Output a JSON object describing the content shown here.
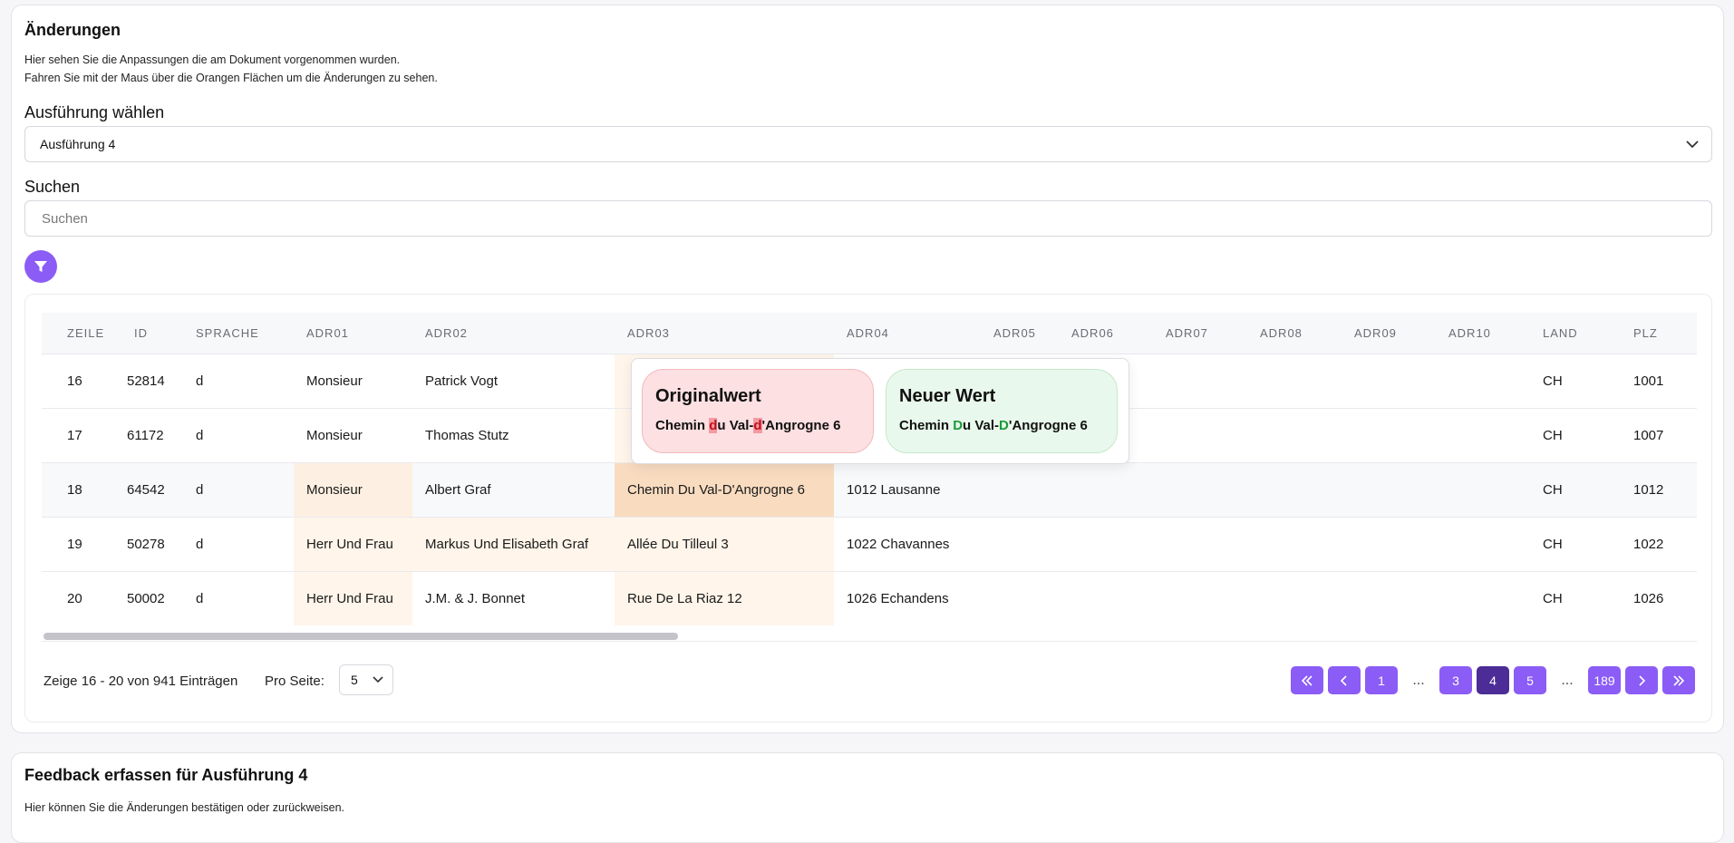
{
  "changes": {
    "title": "Änderungen",
    "desc_line1": "Hier sehen Sie die Anpassungen die am Dokument vorgenommen wurden.",
    "desc_line2": "Fahren Sie mit der Maus über die Orangen Flächen um die Änderungen zu sehen.",
    "execution_label": "Ausführung wählen",
    "execution_selected": "Ausführung 4",
    "search_label": "Suchen",
    "search_placeholder": "Suchen"
  },
  "table": {
    "columns": [
      "ZEILE",
      "ID",
      "SPRACHE",
      "ADR01",
      "ADR02",
      "ADR03",
      "ADR04",
      "ADR05",
      "ADR06",
      "ADR07",
      "ADR08",
      "ADR09",
      "ADR10",
      "LAND",
      "PLZ"
    ],
    "rows": [
      {
        "zeile": "16",
        "id": "52814",
        "sprache": "d",
        "adr01": "Monsieur",
        "adr02": "Patrick Vogt",
        "adr03": "",
        "adr04": "",
        "land": "CH",
        "plz": "1001"
      },
      {
        "zeile": "17",
        "id": "61172",
        "sprache": "d",
        "adr01": "Monsieur",
        "adr02": "Thomas Stutz",
        "adr03": "",
        "adr04": "",
        "land": "CH",
        "plz": "1007"
      },
      {
        "zeile": "18",
        "id": "64542",
        "sprache": "d",
        "adr01": "Monsieur",
        "adr02": "Albert Graf",
        "adr03": "Chemin Du Val-D'Angrogne 6",
        "adr04": "1012 Lausanne",
        "land": "CH",
        "plz": "1012"
      },
      {
        "zeile": "19",
        "id": "50278",
        "sprache": "d",
        "adr01": "Herr Und Frau",
        "adr02": "Markus Und Elisabeth Graf",
        "adr03": "Allée Du Tilleul 3",
        "adr04": "1022 Chavannes",
        "land": "CH",
        "plz": "1022"
      },
      {
        "zeile": "20",
        "id": "50002",
        "sprache": "d",
        "adr01": "Herr Und Frau",
        "adr02": "J.M. & J. Bonnet",
        "adr03": "Rue De La Riaz 12",
        "adr04": "1026 Echandens",
        "land": "CH",
        "plz": "1026"
      }
    ]
  },
  "tooltip": {
    "original_title": "Originalwert",
    "original_parts": [
      "Chemin ",
      "d",
      "u Val-",
      "d",
      "'Angrogne 6"
    ],
    "new_title": "Neuer Wert",
    "new_parts": [
      "Chemin ",
      "D",
      "u Val-",
      "D",
      "'Angrogne 6"
    ]
  },
  "footer": {
    "info": "Zeige 16 - 20 von 941 Einträgen",
    "per_page_label": "Pro Seite:",
    "per_page_value": "5",
    "pages": [
      "1",
      "...",
      "3",
      "4",
      "5",
      "...",
      "189"
    ],
    "active_page": "4"
  },
  "feedback": {
    "title": "Feedback erfassen für Ausführung 4",
    "desc": "Hier können Sie die Änderungen bestätigen oder zurückweisen."
  },
  "colors": {
    "accent": "#8b5cf6",
    "accent_active": "#4c2c96",
    "changed_cell": "#fff5ea",
    "original_bg": "#fde0e2",
    "new_bg": "#e9f8ec"
  }
}
